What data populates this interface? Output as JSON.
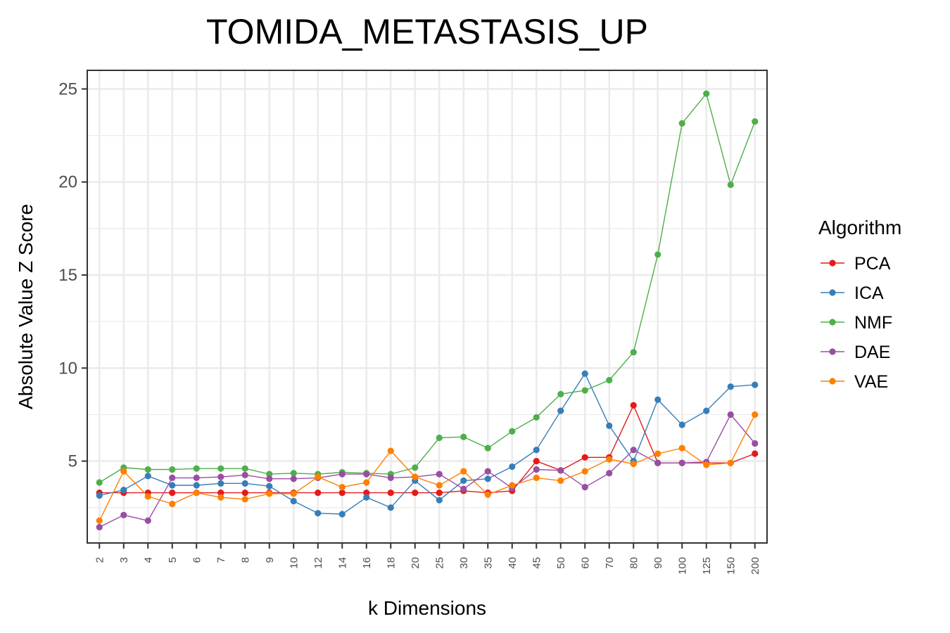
{
  "chart_data": {
    "type": "line",
    "title": "TOMIDA_METASTASIS_UP",
    "xlabel": "k Dimensions",
    "ylabel": "Absolute Value Z Score",
    "ylim": [
      0.6,
      26
    ],
    "yticks": [
      5,
      10,
      15,
      20,
      25
    ],
    "grid": true,
    "legend_title": "Algorithm",
    "legend_position": "right",
    "categories": [
      "2",
      "3",
      "4",
      "5",
      "6",
      "7",
      "8",
      "9",
      "10",
      "12",
      "14",
      "16",
      "18",
      "20",
      "25",
      "30",
      "35",
      "40",
      "45",
      "50",
      "60",
      "70",
      "80",
      "90",
      "100",
      "125",
      "150",
      "200"
    ],
    "series": [
      {
        "name": "PCA",
        "color": "#e41a1c",
        "values": [
          3.3,
          3.3,
          3.3,
          3.3,
          3.3,
          3.3,
          3.3,
          3.3,
          3.3,
          3.3,
          3.3,
          3.3,
          3.3,
          3.3,
          3.3,
          3.4,
          3.3,
          3.4,
          5.0,
          4.5,
          5.2,
          5.2,
          8.0,
          4.9,
          4.9,
          4.9,
          4.9,
          5.4
        ]
      },
      {
        "name": "ICA",
        "color": "#377eb8",
        "values": [
          3.15,
          3.45,
          4.2,
          3.7,
          3.7,
          3.8,
          3.8,
          3.65,
          2.85,
          2.2,
          2.15,
          3.05,
          2.5,
          3.95,
          2.9,
          3.95,
          4.05,
          4.7,
          5.6,
          7.7,
          9.7,
          6.9,
          5.0,
          8.3,
          6.95,
          7.7,
          9.0,
          9.1
        ]
      },
      {
        "name": "NMF",
        "color": "#4daf4a",
        "values": [
          3.85,
          4.65,
          4.55,
          4.55,
          4.6,
          4.6,
          4.6,
          4.3,
          4.35,
          4.3,
          4.4,
          4.35,
          4.3,
          4.65,
          6.25,
          6.3,
          5.7,
          6.6,
          7.35,
          8.6,
          8.8,
          9.35,
          10.85,
          16.1,
          23.15,
          24.75,
          19.85,
          23.25
        ]
      },
      {
        "name": "DAE",
        "color": "#984ea3",
        "values": [
          1.45,
          2.1,
          1.8,
          4.1,
          4.1,
          4.15,
          4.25,
          4.05,
          4.05,
          4.1,
          4.3,
          4.3,
          4.1,
          4.15,
          4.3,
          3.5,
          4.45,
          3.55,
          4.55,
          4.5,
          3.6,
          4.35,
          5.6,
          4.9,
          4.9,
          4.95,
          7.5,
          5.95
        ]
      },
      {
        "name": "VAE",
        "color": "#ff7f00",
        "values": [
          1.8,
          4.45,
          3.1,
          2.7,
          3.3,
          3.05,
          2.95,
          3.25,
          3.25,
          4.15,
          3.6,
          3.85,
          5.55,
          4.15,
          3.7,
          4.45,
          3.2,
          3.7,
          4.1,
          3.95,
          4.45,
          5.1,
          4.85,
          5.4,
          5.7,
          4.8,
          4.9,
          7.5
        ]
      }
    ]
  }
}
